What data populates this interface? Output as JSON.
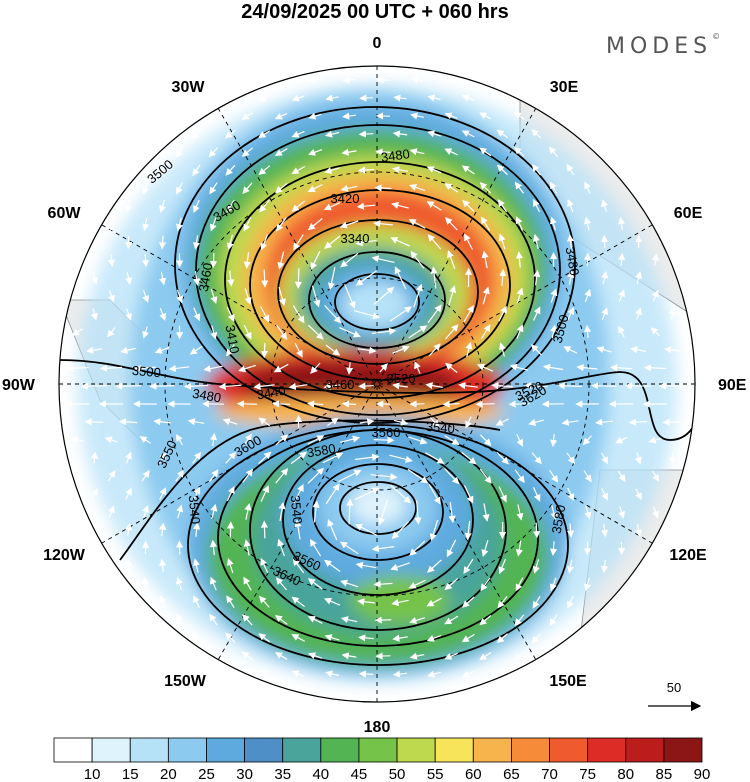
{
  "header": {
    "title": "24/09/2025  00 UTC  + 060 hrs",
    "logo": "MODES",
    "logo_mark": "©"
  },
  "map": {
    "projection": "polar-stereographic",
    "lon_labels": [
      "0",
      "30E",
      "60E",
      "90E",
      "120E",
      "150E",
      "180",
      "150W",
      "120W",
      "90W",
      "60W",
      "30W"
    ],
    "contour_labels": [
      "3480",
      "3500",
      "3460",
      "3420",
      "3340",
      "3480",
      "3500",
      "3460",
      "3410",
      "3500",
      "3480",
      "3440",
      "3460",
      "3520",
      "3520",
      "3550",
      "3600",
      "3580",
      "3560",
      "3540",
      "3620",
      "3540",
      "3540",
      "3580",
      "3640",
      "3560"
    ],
    "vector_reference": {
      "label": "50"
    }
  },
  "colorbar": {
    "ticks": [
      "10",
      "15",
      "20",
      "25",
      "30",
      "35",
      "40",
      "45",
      "50",
      "55",
      "60",
      "65",
      "70",
      "75",
      "80",
      "85",
      "90"
    ],
    "colors": [
      "#ffffff",
      "#dff3fd",
      "#b6e2f8",
      "#8ccaf0",
      "#5eaadf",
      "#4f8fc7",
      "#4aa49b",
      "#52b452",
      "#76c34a",
      "#bfd94f",
      "#f7e45a",
      "#f8b44c",
      "#f68b3a",
      "#ef5a2f",
      "#dc2c25",
      "#bb1d1d",
      "#8c1515"
    ]
  }
}
